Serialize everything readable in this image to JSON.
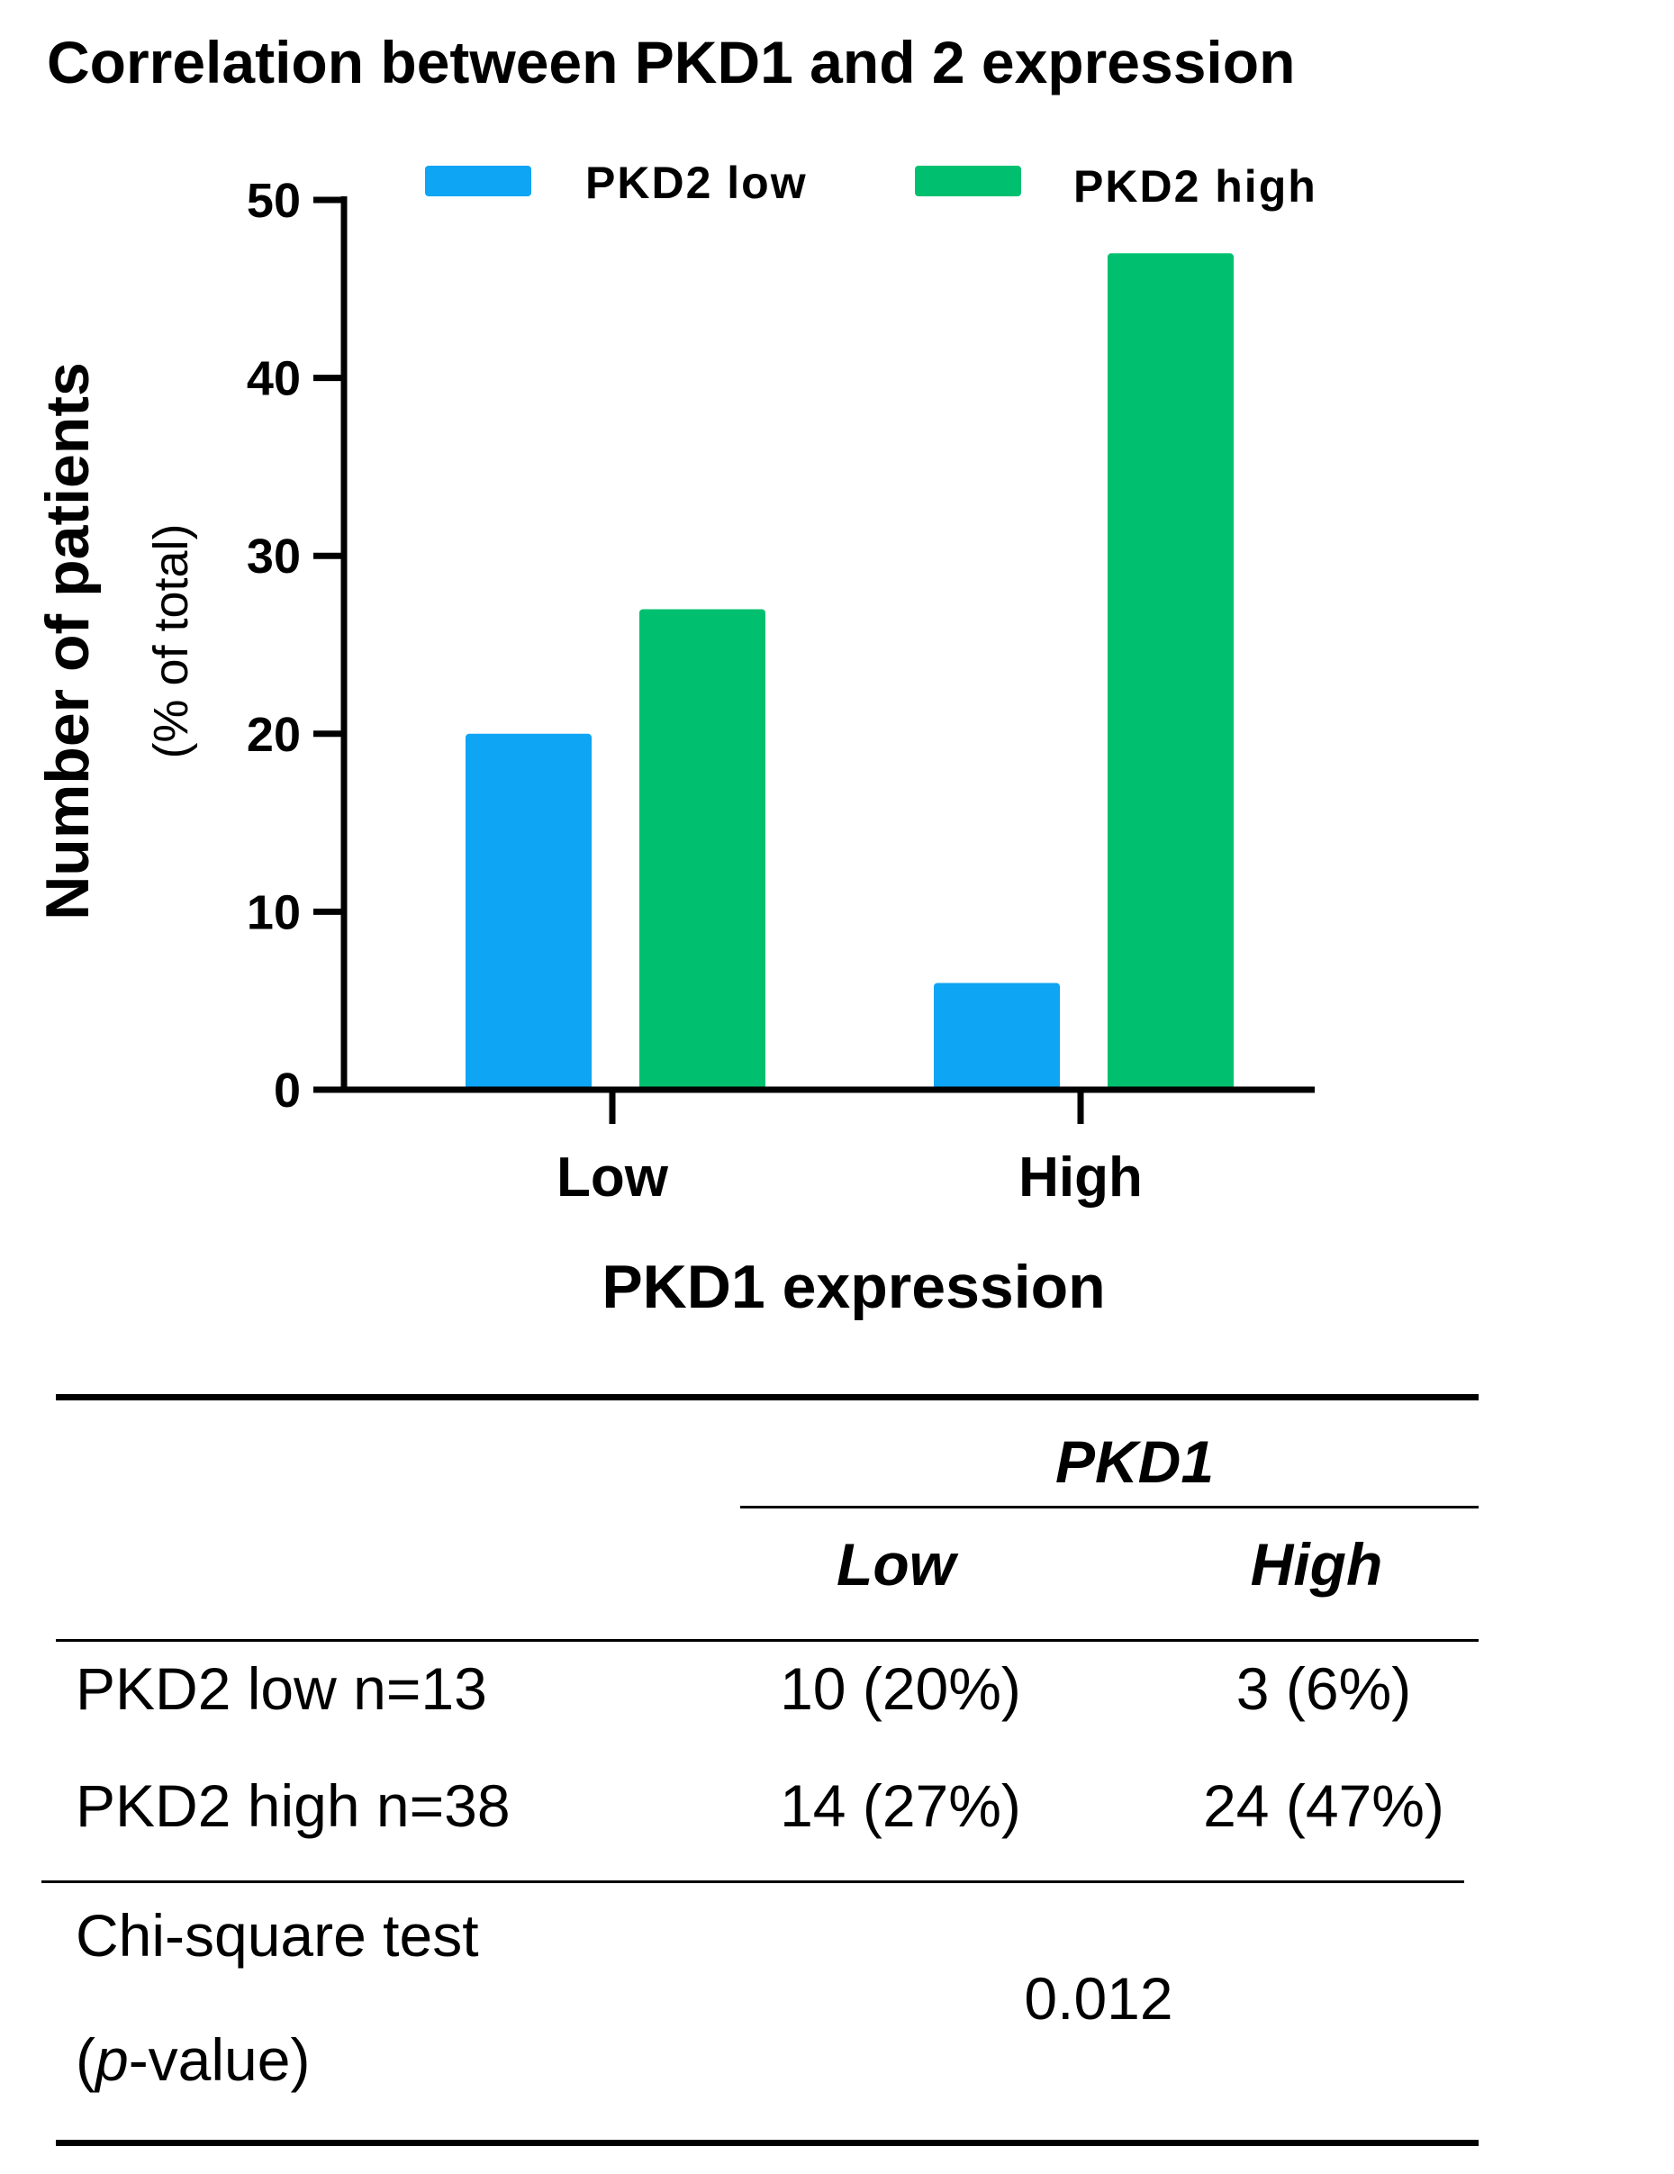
{
  "chart_data": {
    "type": "bar",
    "title": "Correlation between PKD1 and 2 expression",
    "xlabel": "PKD1 expression",
    "ylabel": "Number of patients",
    "ylabel_sub": "(% of total)",
    "categories": [
      "Low",
      "High"
    ],
    "series": [
      {
        "name": "PKD2 low",
        "values": [
          20,
          6
        ],
        "color": "#0ea5f4"
      },
      {
        "name": "PKD2 high",
        "values": [
          27,
          47
        ],
        "color": "#00c06f"
      }
    ],
    "ylim": [
      0,
      50
    ],
    "yticks": [
      "0",
      "10",
      "20",
      "30",
      "40",
      "50"
    ],
    "legend_position": "top",
    "grid": false
  },
  "table": {
    "group_header": "PKD1",
    "col_headers": [
      "Low",
      "High"
    ],
    "rows": [
      {
        "label": "PKD2 low n=13",
        "low": "10 (20%)",
        "high": "3 (6%)"
      },
      {
        "label": "PKD2 high n=38",
        "low": "14 (27%)",
        "high": "24 (47%)"
      }
    ],
    "test_label_1": "Chi-square test",
    "test_label_2_prefix": "(",
    "test_label_2_italic": "p",
    "test_label_2_suffix": "-value)",
    "test_value": "0.012"
  }
}
